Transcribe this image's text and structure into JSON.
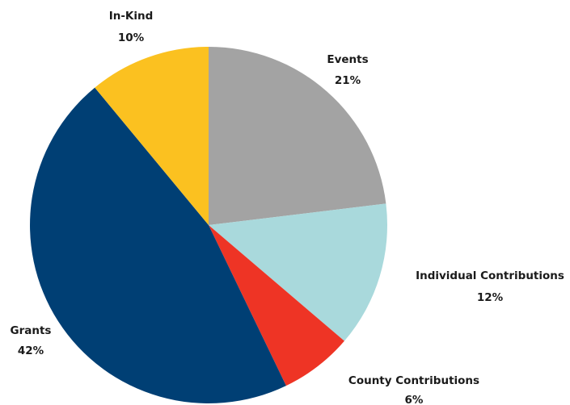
{
  "chart_data": {
    "type": "pie",
    "start_angle_deg": 0,
    "direction": "clockwise",
    "slices": [
      {
        "label": "Events",
        "percent_label": "21%",
        "value": 21,
        "color": "#a3a3a3"
      },
      {
        "label": "Individual Contributions",
        "percent_label": "12%",
        "value": 12,
        "color": "#a9d9dc"
      },
      {
        "label": "County Contributions",
        "percent_label": "6%",
        "value": 6,
        "color": "#ee3425"
      },
      {
        "label": "Grants",
        "percent_label": "42%",
        "value": 42,
        "color": "#003f74"
      },
      {
        "label": "In-Kind",
        "percent_label": "10%",
        "value": 10,
        "color": "#fbc120"
      }
    ]
  }
}
